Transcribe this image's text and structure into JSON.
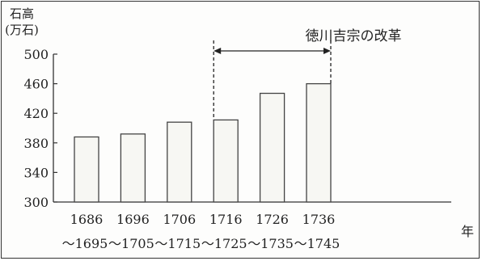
{
  "chart_data": {
    "type": "bar",
    "ylabel_line1": "石高",
    "ylabel_line2": "(万石)",
    "xlabel": "年",
    "annotation": "徳川吉宗の改革",
    "categories": [
      {
        "start": "1686",
        "end": "〜1695"
      },
      {
        "start": "1696",
        "end": "〜1705"
      },
      {
        "start": "1706",
        "end": "〜1715"
      },
      {
        "start": "1716",
        "end": "〜1725"
      },
      {
        "start": "1726",
        "end": "〜1735"
      },
      {
        "start": "1736",
        "end": "〜1745"
      }
    ],
    "values": [
      388,
      392,
      408,
      411,
      447,
      460
    ],
    "yticks": [
      "500",
      "460",
      "420",
      "380",
      "340",
      "300"
    ],
    "ylim": [
      300,
      500
    ],
    "annotation_range": [
      "1716",
      "1736"
    ],
    "grid": false,
    "colors": {
      "bar_fill": "#f7f7f3",
      "bar_stroke": "#444444",
      "axis": "#333333"
    }
  }
}
